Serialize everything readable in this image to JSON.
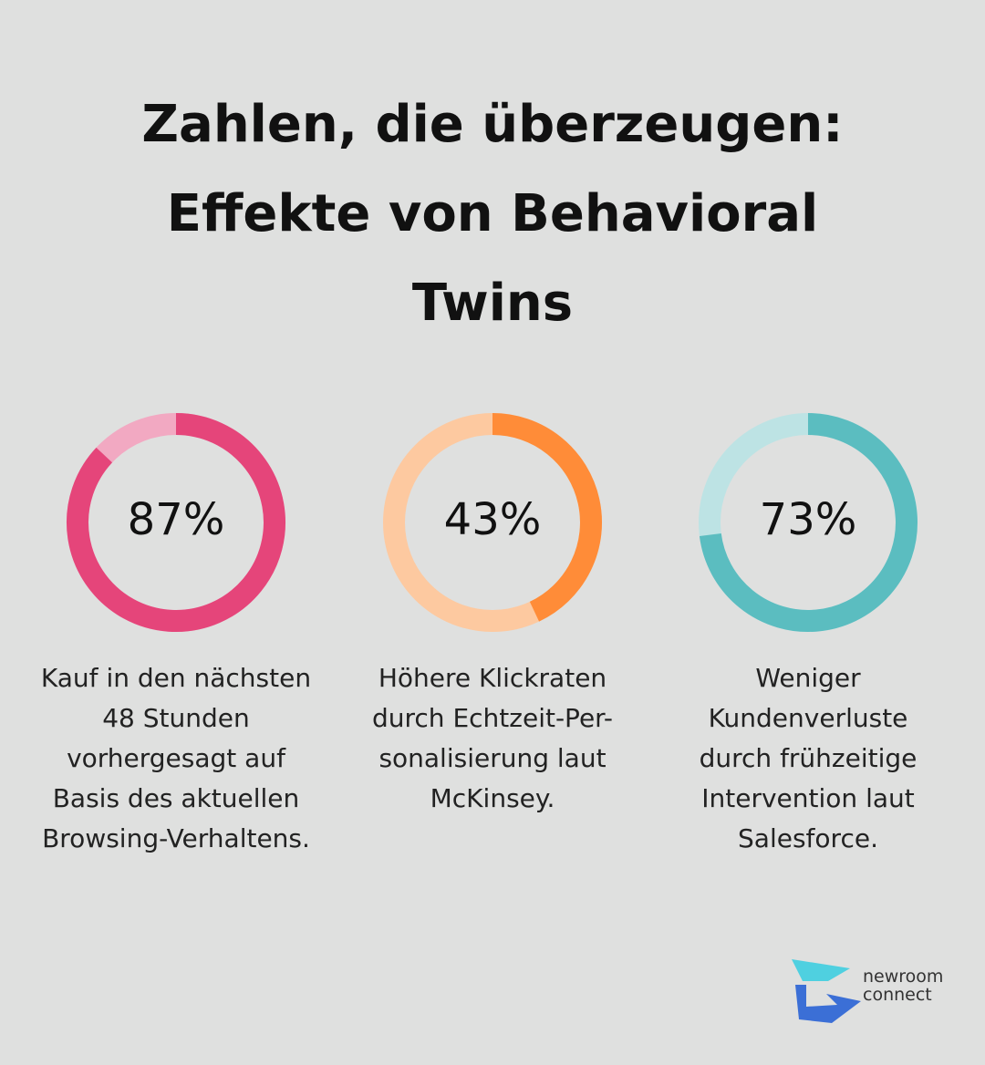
{
  "title": [
    "Zahlen, die überzeugen:",
    "Effekte von Behavioral",
    "Twins"
  ],
  "chart_data": [
    {
      "type": "donut",
      "values": [
        87
      ],
      "value_labels": [
        "87%"
      ],
      "ylim": [
        0,
        100
      ],
      "color": "#e5457a",
      "track_color": "#f2a9c2",
      "caption": [
        "Kauf in den nächsten",
        "48 Stunden",
        "vorhergesagt auf",
        "Basis des aktuellen",
        "Browsing-Verhaltens."
      ]
    },
    {
      "type": "donut",
      "values": [
        43
      ],
      "value_labels": [
        "43%"
      ],
      "ylim": [
        0,
        100
      ],
      "color": "#ff8c38",
      "track_color": "#fdc9a0",
      "caption": [
        "Höhere Klickraten",
        "durch Echtzeit-Per-",
        "sonalisierung laut",
        "McKinsey."
      ]
    },
    {
      "type": "donut",
      "values": [
        73
      ],
      "value_labels": [
        "73%"
      ],
      "ylim": [
        0,
        100
      ],
      "color": "#5bbdc0",
      "track_color": "#bde3e4",
      "caption": [
        "Weniger",
        "Kundenverluste",
        "durch frühzeitige",
        "Intervention laut",
        "Salesforce."
      ]
    }
  ],
  "logo": [
    "newroom",
    "connect"
  ]
}
